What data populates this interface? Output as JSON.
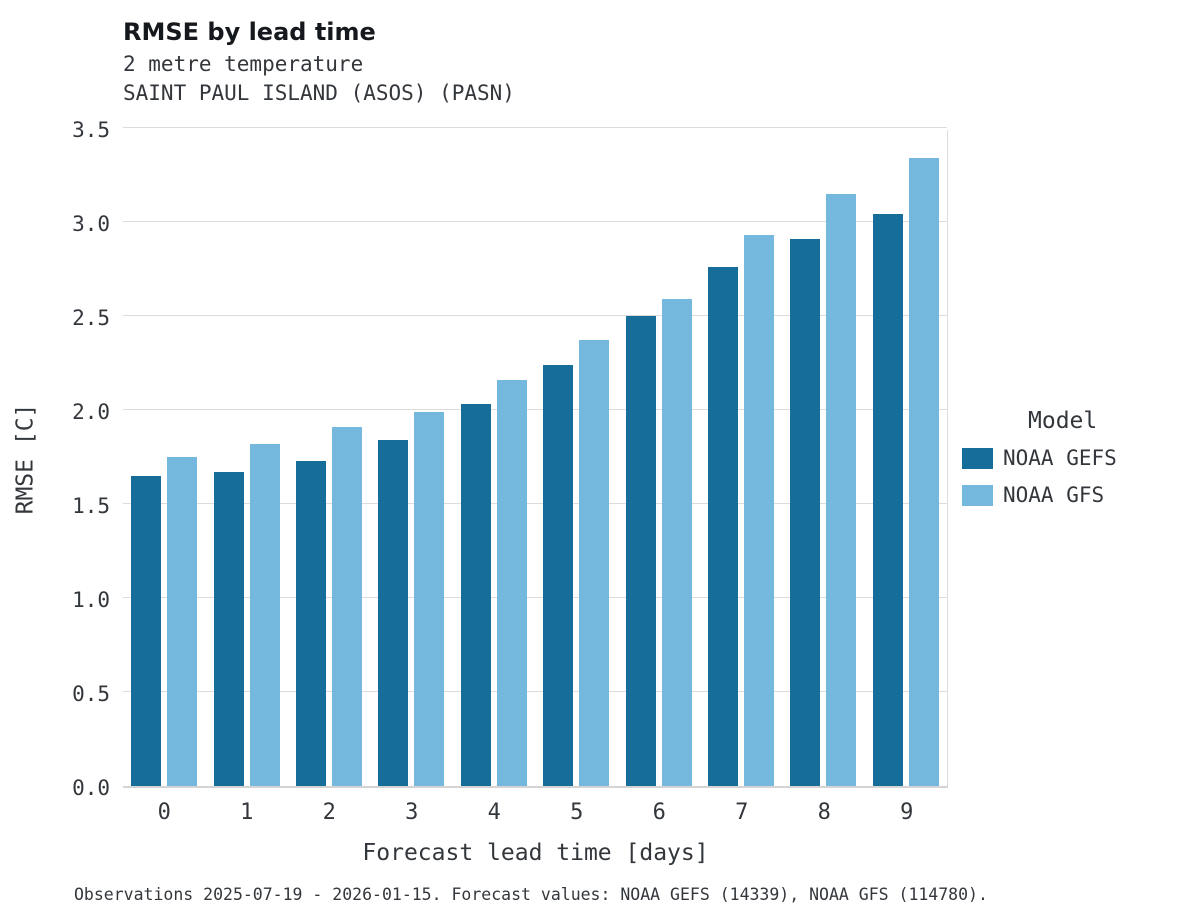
{
  "title": "RMSE by lead time",
  "subtitle_variable": "2 metre temperature",
  "subtitle_station": "SAINT PAUL ISLAND (ASOS) (PASN)",
  "footer": "Observations 2025-07-19 - 2026-01-15. Forecast values: NOAA GEFS (14339), NOAA GFS (114780).",
  "chart_data": {
    "type": "bar",
    "title": "RMSE by lead time",
    "subtitle": "2 metre temperature — SAINT PAUL ISLAND (ASOS) (PASN)",
    "xlabel": "Forecast lead time [days]",
    "ylabel": "RMSE [C]",
    "ylim": [
      0,
      3.5
    ],
    "yticks": [
      0.0,
      0.5,
      1.0,
      1.5,
      2.0,
      2.5,
      3.0,
      3.5
    ],
    "grid": true,
    "legend_title": "Model",
    "legend_position": "right",
    "categories": [
      "0",
      "1",
      "2",
      "3",
      "4",
      "5",
      "6",
      "7",
      "8",
      "9"
    ],
    "series": [
      {
        "name": "NOAA GEFS",
        "color": "#176d99",
        "values": [
          1.65,
          1.67,
          1.73,
          1.84,
          2.03,
          2.24,
          2.5,
          2.76,
          2.91,
          3.04
        ]
      },
      {
        "name": "NOAA GFS",
        "color": "#74b8de",
        "values": [
          1.75,
          1.82,
          1.91,
          1.99,
          2.16,
          2.37,
          2.59,
          2.93,
          3.15,
          3.34
        ]
      }
    ]
  }
}
